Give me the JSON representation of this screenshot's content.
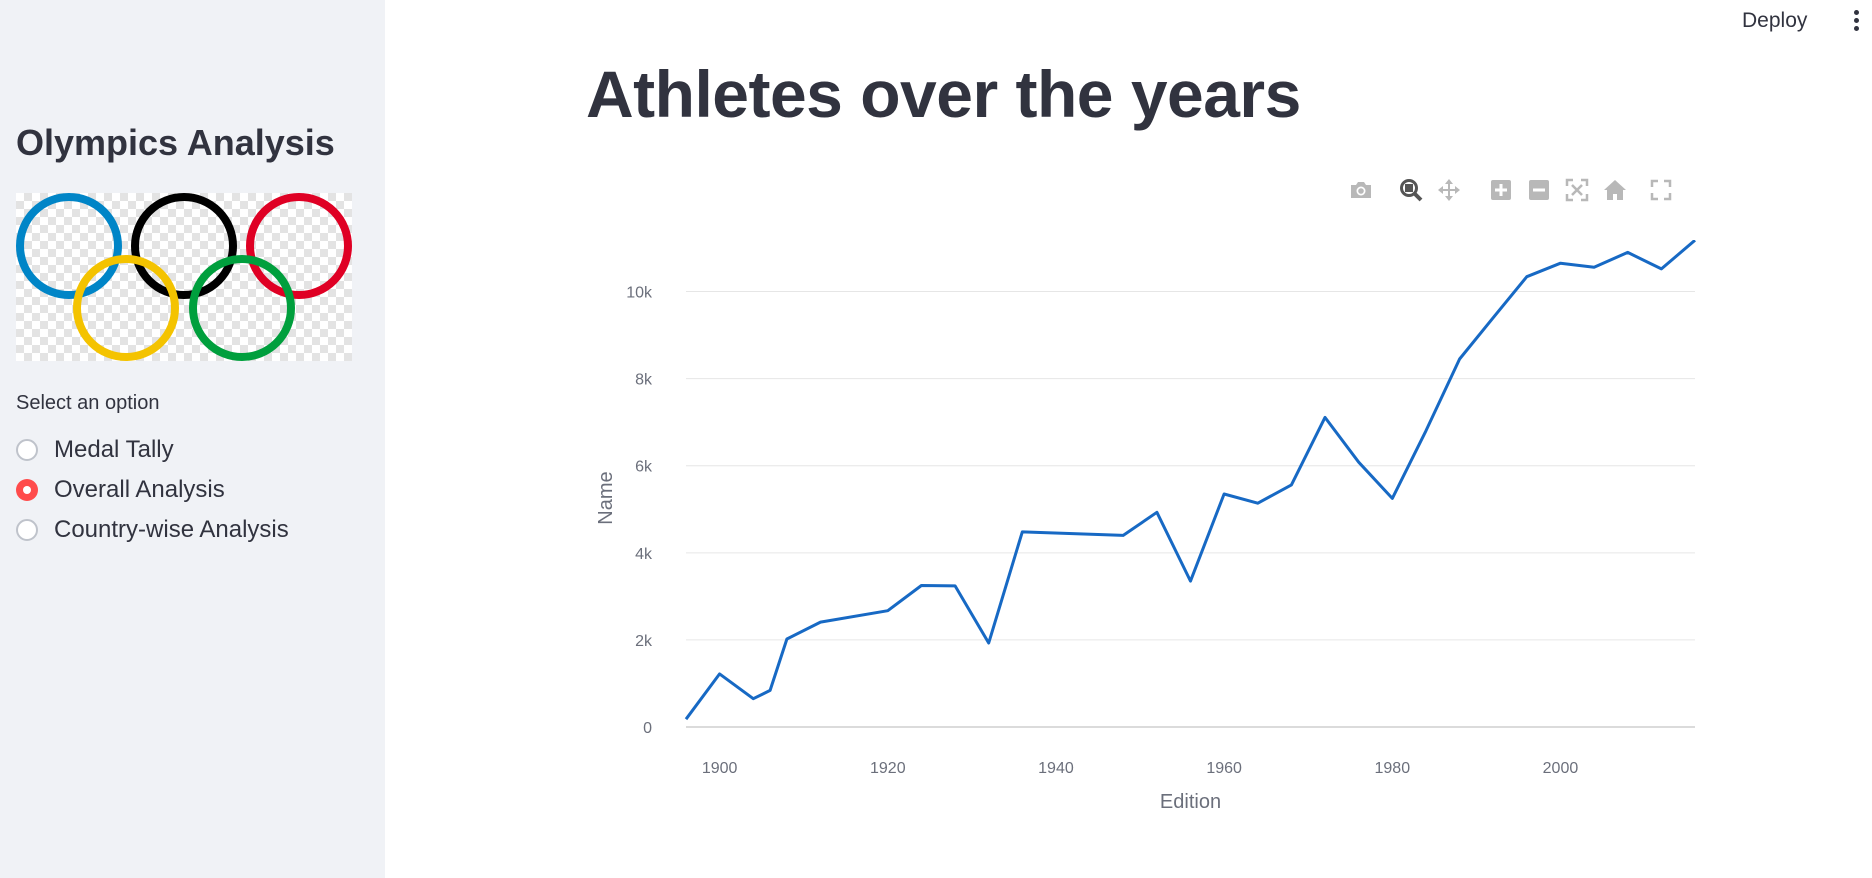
{
  "header": {
    "deploy_label": "Deploy",
    "menu_icon": "vertical-ellipsis-icon"
  },
  "sidebar": {
    "title": "Olympics Analysis",
    "logo": {
      "icon": "olympic-rings-icon",
      "ring_colors": [
        "#0085c7",
        "#000000",
        "#df0024",
        "#f4c300",
        "#009f3d"
      ]
    },
    "radio_label": "Select an option",
    "options": [
      {
        "label": "Medal Tally",
        "selected": false
      },
      {
        "label": "Overall Analysis",
        "selected": true
      },
      {
        "label": "Country-wise Analysis",
        "selected": false
      }
    ]
  },
  "main": {
    "title": "Athletes over the years"
  },
  "modebar": {
    "buttons": [
      "camera-icon",
      "zoom-icon",
      "pan-icon",
      "zoom-in-icon",
      "zoom-out-icon",
      "autoscale-icon",
      "reset-axes-icon",
      "fullscreen-icon"
    ]
  },
  "colors": {
    "line": "#1769c4",
    "accent": "#ff4b4b",
    "sidebar_bg": "#f0f2f6",
    "grid": "#e6e6e6",
    "modebar_icon": "#b8b8b8"
  },
  "chart_data": {
    "type": "line",
    "xlabel": "Edition",
    "ylabel": "Name",
    "xlim": [
      1896,
      2016
    ],
    "ylim": [
      0,
      11000
    ],
    "x_ticks": [
      1900,
      1920,
      1940,
      1960,
      1980,
      2000
    ],
    "y_ticks": [
      0,
      2000,
      4000,
      6000,
      8000,
      10000
    ],
    "y_tick_labels": [
      "0",
      "2k",
      "4k",
      "6k",
      "8k",
      "10k"
    ],
    "grid": true,
    "series": [
      {
        "x": [
          1896,
          1900,
          1904,
          1906,
          1908,
          1912,
          1920,
          1924,
          1928,
          1932,
          1936,
          1948,
          1952,
          1956,
          1960,
          1964,
          1968,
          1972,
          1976,
          1980,
          1984,
          1988,
          1992,
          1996,
          2000,
          2004,
          2008,
          2012,
          2016
        ],
        "values": [
          180,
          1220,
          650,
          840,
          2020,
          2410,
          2670,
          3250,
          3240,
          1930,
          4480,
          4400,
          4930,
          3350,
          5350,
          5140,
          5560,
          7110,
          6080,
          5250,
          6800,
          8450,
          9400,
          10340,
          10650,
          10560,
          10900,
          10520,
          11180
        ]
      }
    ]
  }
}
